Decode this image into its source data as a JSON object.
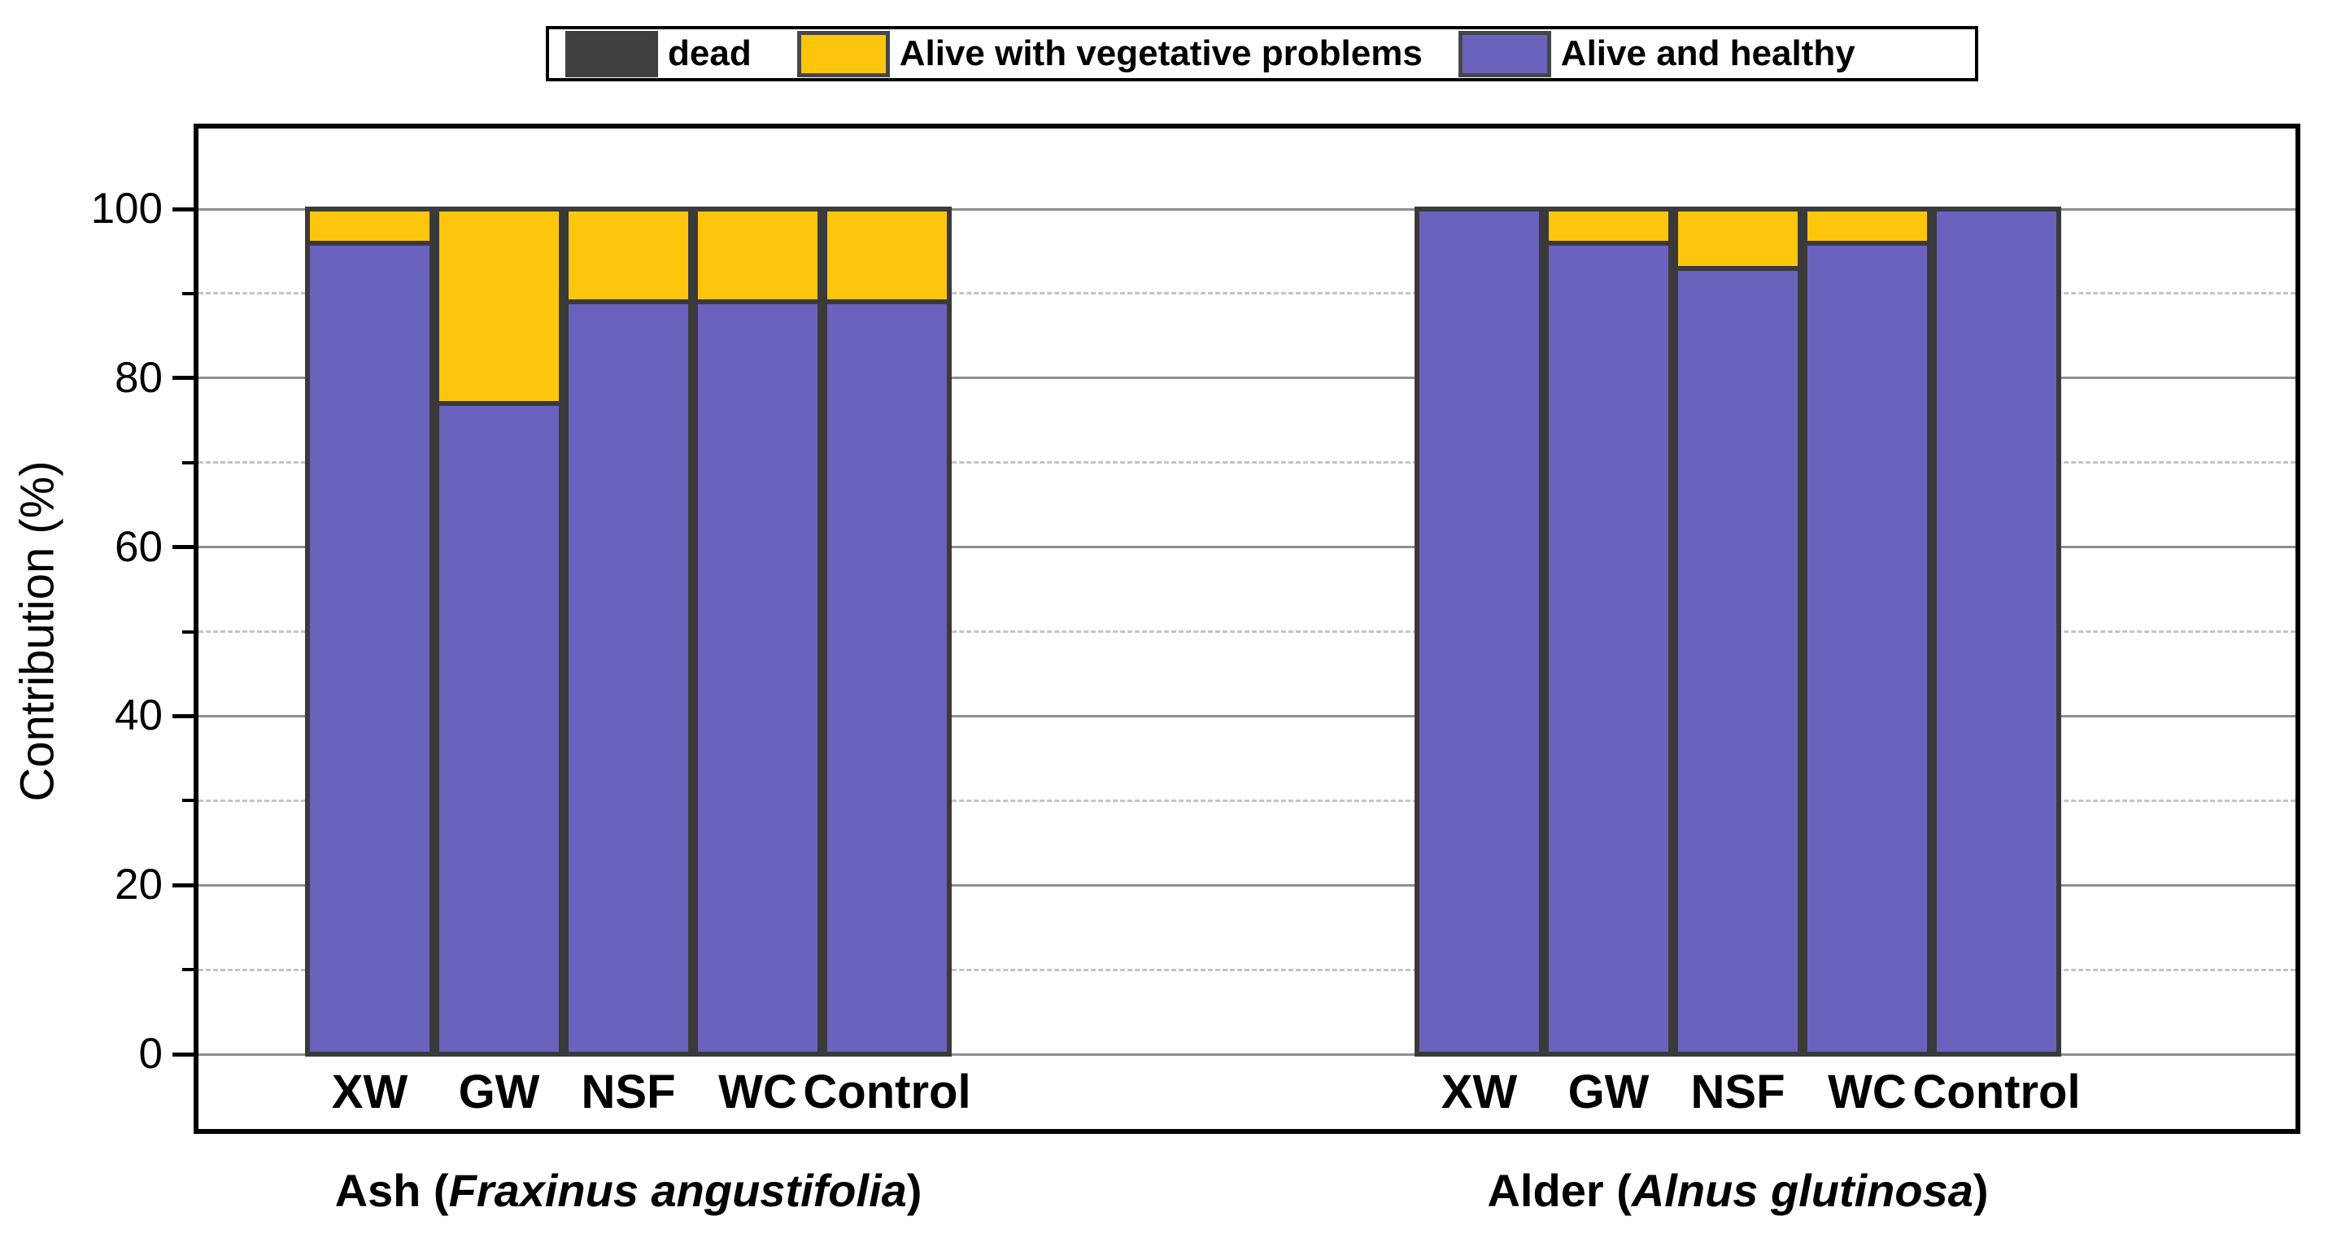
{
  "legend": {
    "items": [
      {
        "label": "dead",
        "swatch_color": "#404040",
        "swatch_border": "#3f3f3f"
      },
      {
        "label": "Alive with vegetative problems",
        "swatch_color": "#fdc60d",
        "swatch_border": "#474747"
      },
      {
        "label": "Alive and healthy",
        "swatch_color": "#6963bd",
        "swatch_border": "#474747"
      }
    ]
  },
  "chart_data": {
    "type": "bar",
    "stacked": true,
    "ylabel": "Contribution (%)",
    "ylim": [
      0,
      100
    ],
    "y_major_ticks": [
      0,
      20,
      40,
      60,
      80,
      100
    ],
    "y_minor_ticks": [
      10,
      30,
      50,
      70,
      90
    ],
    "grid": {
      "major": "solid",
      "minor": "dashed"
    },
    "legend_position": "top-center",
    "categories": [
      "XW",
      "GW",
      "NSF",
      "WC",
      "Control"
    ],
    "groups": [
      {
        "name": "Ash",
        "species": "Fraxinus angustifolia",
        "series": [
          {
            "name": "dead",
            "color": "#404040",
            "values": [
              0,
              0,
              0,
              0,
              0
            ]
          },
          {
            "name": "Alive with vegetative problems",
            "color": "#fdc60d",
            "values": [
              4,
              23,
              11,
              11,
              11
            ]
          },
          {
            "name": "Alive and healthy",
            "color": "#6963bd",
            "values": [
              96,
              77,
              89,
              89,
              89
            ]
          }
        ]
      },
      {
        "name": "Alder",
        "species": "Alnus glutinosa",
        "series": [
          {
            "name": "dead",
            "color": "#404040",
            "values": [
              0,
              0,
              0,
              0,
              0
            ]
          },
          {
            "name": "Alive with vegetative problems",
            "color": "#fdc60d",
            "values": [
              0,
              4,
              7,
              4,
              0
            ]
          },
          {
            "name": "Alive and healthy",
            "color": "#6963bd",
            "values": [
              100,
              96,
              93,
              96,
              100
            ]
          }
        ]
      }
    ]
  },
  "colors": {
    "bar_border": "#3a3a3a",
    "frame": "#000000",
    "grid_major": "#8f8f8f",
    "grid_minor": "#c4c4c4",
    "baseline": "#8f8f8f",
    "text": "#000000",
    "background": "#ffffff"
  }
}
